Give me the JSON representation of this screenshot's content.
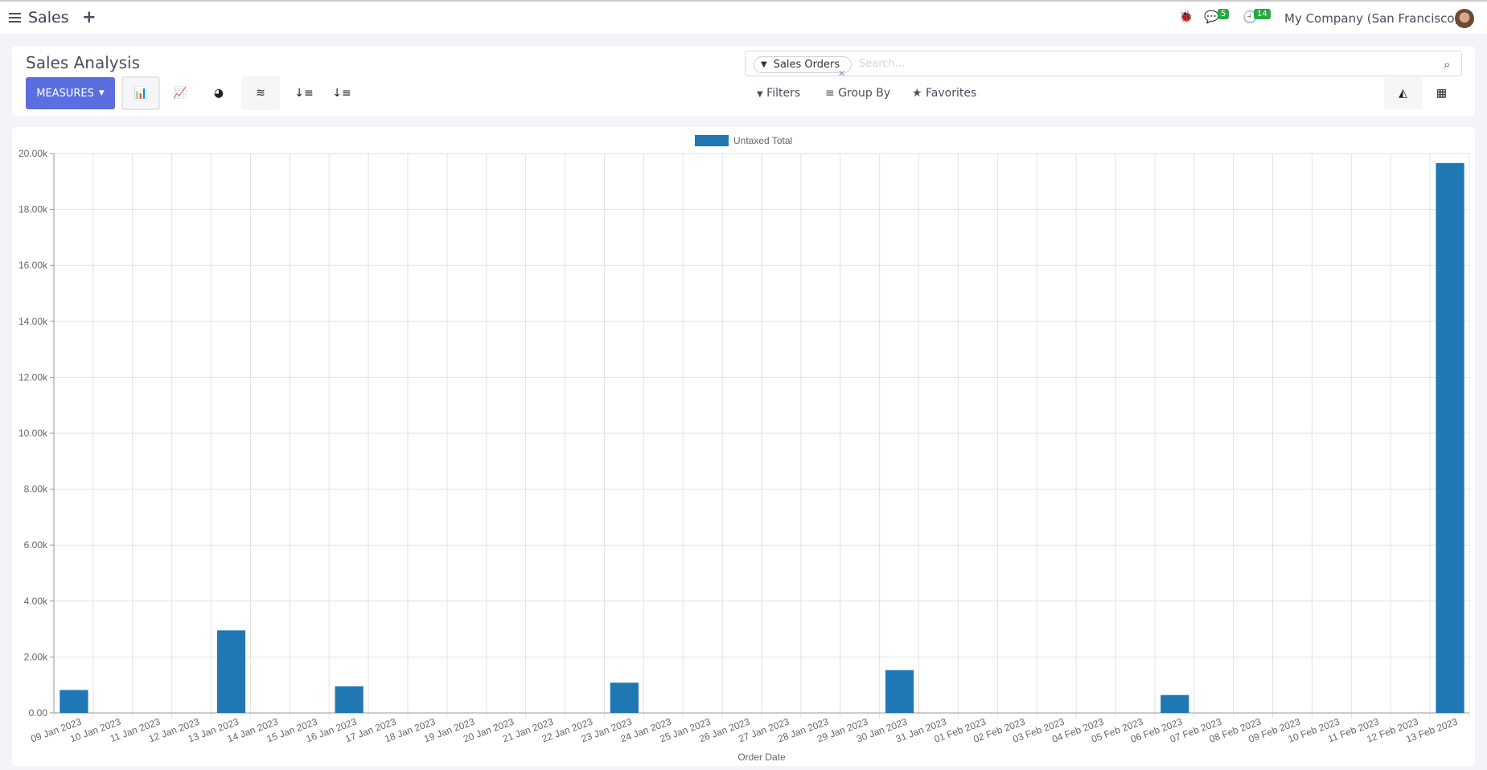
{
  "topbar": {
    "app": "Sales",
    "new": "+",
    "messages_count": "5",
    "activities_count": "14",
    "company": "My Company (San Francisco)"
  },
  "control_panel": {
    "title": "Sales Analysis",
    "measures": "MEASURES",
    "search": {
      "facet": "Sales Orders",
      "placeholder": "Search..."
    },
    "filters": "Filters",
    "group_by": "Group By",
    "favorites": "Favorites"
  },
  "colors": {
    "accent": "#5a6ee0",
    "bar": "#1f77b4",
    "badge": "#28a745"
  },
  "chart_data": {
    "type": "bar",
    "title": "",
    "xlabel": "Order Date",
    "ylabel": "",
    "ylim": [
      0,
      20000
    ],
    "yticks": [
      "0.00",
      "2.00k",
      "4.00k",
      "6.00k",
      "8.00k",
      "10.00k",
      "12.00k",
      "14.00k",
      "16.00k",
      "18.00k",
      "20.00k"
    ],
    "grid": true,
    "legend": "top-center",
    "categories": [
      "09 Jan 2023",
      "10 Jan 2023",
      "11 Jan 2023",
      "12 Jan 2023",
      "13 Jan 2023",
      "14 Jan 2023",
      "15 Jan 2023",
      "16 Jan 2023",
      "17 Jan 2023",
      "18 Jan 2023",
      "19 Jan 2023",
      "20 Jan 2023",
      "21 Jan 2023",
      "22 Jan 2023",
      "23 Jan 2023",
      "24 Jan 2023",
      "25 Jan 2023",
      "26 Jan 2023",
      "27 Jan 2023",
      "28 Jan 2023",
      "29 Jan 2023",
      "30 Jan 2023",
      "31 Jan 2023",
      "01 Feb 2023",
      "02 Feb 2023",
      "03 Feb 2023",
      "04 Feb 2023",
      "05 Feb 2023",
      "06 Feb 2023",
      "07 Feb 2023",
      "08 Feb 2023",
      "09 Feb 2023",
      "10 Feb 2023",
      "11 Feb 2023",
      "12 Feb 2023",
      "13 Feb 2023"
    ],
    "series": [
      {
        "name": "Untaxed Total",
        "values": [
          820,
          0,
          0,
          0,
          2950,
          0,
          0,
          950,
          0,
          0,
          0,
          0,
          0,
          0,
          1080,
          0,
          0,
          0,
          0,
          0,
          0,
          1530,
          0,
          0,
          0,
          0,
          0,
          0,
          640,
          0,
          0,
          0,
          0,
          0,
          0,
          19660
        ]
      }
    ]
  }
}
